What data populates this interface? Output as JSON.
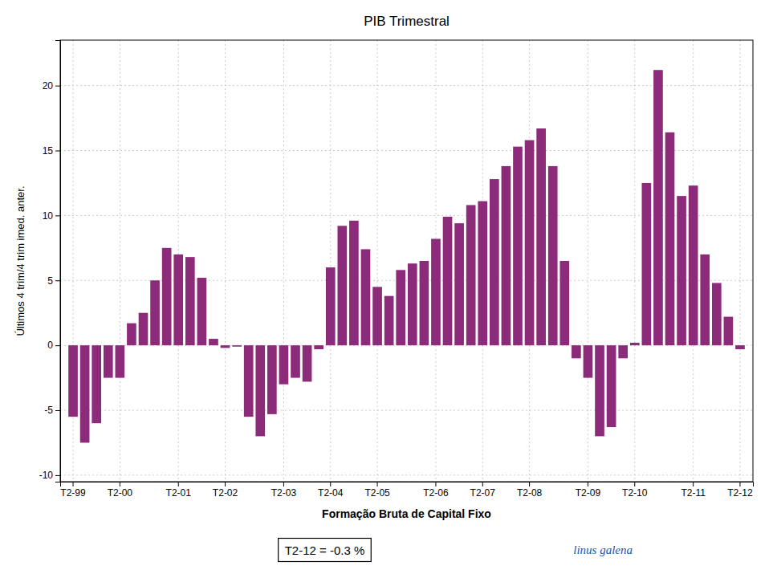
{
  "chart_data": {
    "type": "bar",
    "title": "PIB Trimestral",
    "xlabel": "Formação Bruta de Capital Fixo",
    "ylabel": "Últimos 4 trim/4 trim imed. anter.",
    "annotations": [
      "T2-12 = -0.3 %",
      "linus galena"
    ],
    "color": "#8B2B7A",
    "grid": true,
    "ylim": [
      -10.5,
      23.5
    ],
    "yticks": [
      -10,
      -5,
      0,
      5,
      10,
      15,
      20
    ],
    "categories": [
      "T2-99",
      null,
      null,
      null,
      "T2-00",
      null,
      null,
      null,
      null,
      "T2-01",
      null,
      null,
      null,
      "T2-02",
      null,
      null,
      null,
      null,
      "T2-03",
      null,
      null,
      null,
      "T2-04",
      null,
      null,
      null,
      "T2-05",
      null,
      null,
      null,
      null,
      "T2-06",
      null,
      null,
      null,
      "T2-07",
      null,
      null,
      null,
      "T2-08",
      null,
      null,
      null,
      null,
      "T2-09",
      null,
      null,
      null,
      "T2-10",
      null,
      null,
      null,
      null,
      "T2-11",
      null,
      null,
      null,
      "T2-12"
    ],
    "values": [
      -5.5,
      -7.5,
      -6.0,
      -2.5,
      -2.5,
      1.7,
      2.5,
      5.0,
      7.5,
      7.0,
      6.8,
      5.2,
      0.5,
      -0.2,
      -0.1,
      -5.5,
      -7.0,
      -5.3,
      -3.0,
      -2.5,
      -2.8,
      -0.3,
      6.0,
      9.2,
      9.6,
      7.4,
      4.5,
      3.8,
      5.8,
      6.3,
      6.5,
      8.2,
      9.9,
      9.4,
      10.8,
      11.1,
      12.8,
      13.8,
      15.3,
      15.8,
      16.7,
      13.8,
      6.5,
      -1.0,
      -2.5,
      -7.0,
      -6.3,
      -1.0,
      0.2,
      12.5,
      21.2,
      16.4,
      11.5,
      12.3,
      7.0,
      4.8,
      2.2,
      -0.3
    ]
  }
}
